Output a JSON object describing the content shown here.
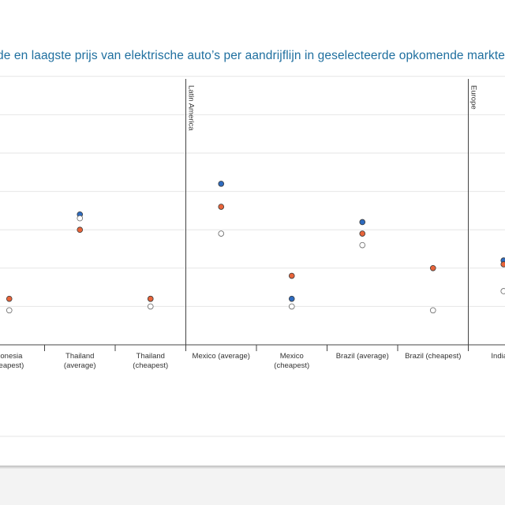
{
  "title": "de en laagste prijs van elektrische auto’s per aandrijflijn in geselecteerde opkomende markten",
  "chart_data": {
    "type": "scatter",
    "title": "de en laagste prijs van elektrische auto’s per aandrijflijn in geselecteerde opkomende markten",
    "xlabel": "",
    "ylabel": "",
    "grid": true,
    "legend": "none",
    "ylim": [
      0,
      7
    ],
    "regions": [
      {
        "label": "Latin America",
        "start_category": "Mexico (average)"
      },
      {
        "label": "Europe",
        "start_category": "India (average)"
      }
    ],
    "categories": [
      {
        "label": "Indonesia (cheapest)",
        "lines": [
          "donesia",
          "heapest)"
        ]
      },
      {
        "label": "Thailand (average)",
        "lines": [
          "Thailand",
          "(average)"
        ]
      },
      {
        "label": "Thailand (cheapest)",
        "lines": [
          "Thailand",
          "(cheapest)"
        ]
      },
      {
        "label": "Mexico (average)",
        "lines": [
          "Mexico (average)"
        ]
      },
      {
        "label": "Mexico (cheapest)",
        "lines": [
          "Mexico",
          "(cheapest)"
        ]
      },
      {
        "label": "Brazil (average)",
        "lines": [
          "Brazil (average)"
        ]
      },
      {
        "label": "Brazil (cheapest)",
        "lines": [
          "Brazil (cheapest)"
        ]
      },
      {
        "label": "India (average)",
        "lines": [
          "India (a"
        ]
      }
    ],
    "series": [
      {
        "color": "#2e6bbf",
        "values": [
          null,
          3.4,
          1.2,
          4.2,
          1.2,
          3.2,
          null,
          2.2
        ]
      },
      {
        "color": "#e8643a",
        "values": [
          1.2,
          3.0,
          1.2,
          3.6,
          1.8,
          2.9,
          2.0,
          2.1
        ]
      },
      {
        "color": "#ffffff",
        "values": [
          0.9,
          3.3,
          1.0,
          2.9,
          1.0,
          2.6,
          0.9,
          1.4
        ]
      }
    ]
  }
}
